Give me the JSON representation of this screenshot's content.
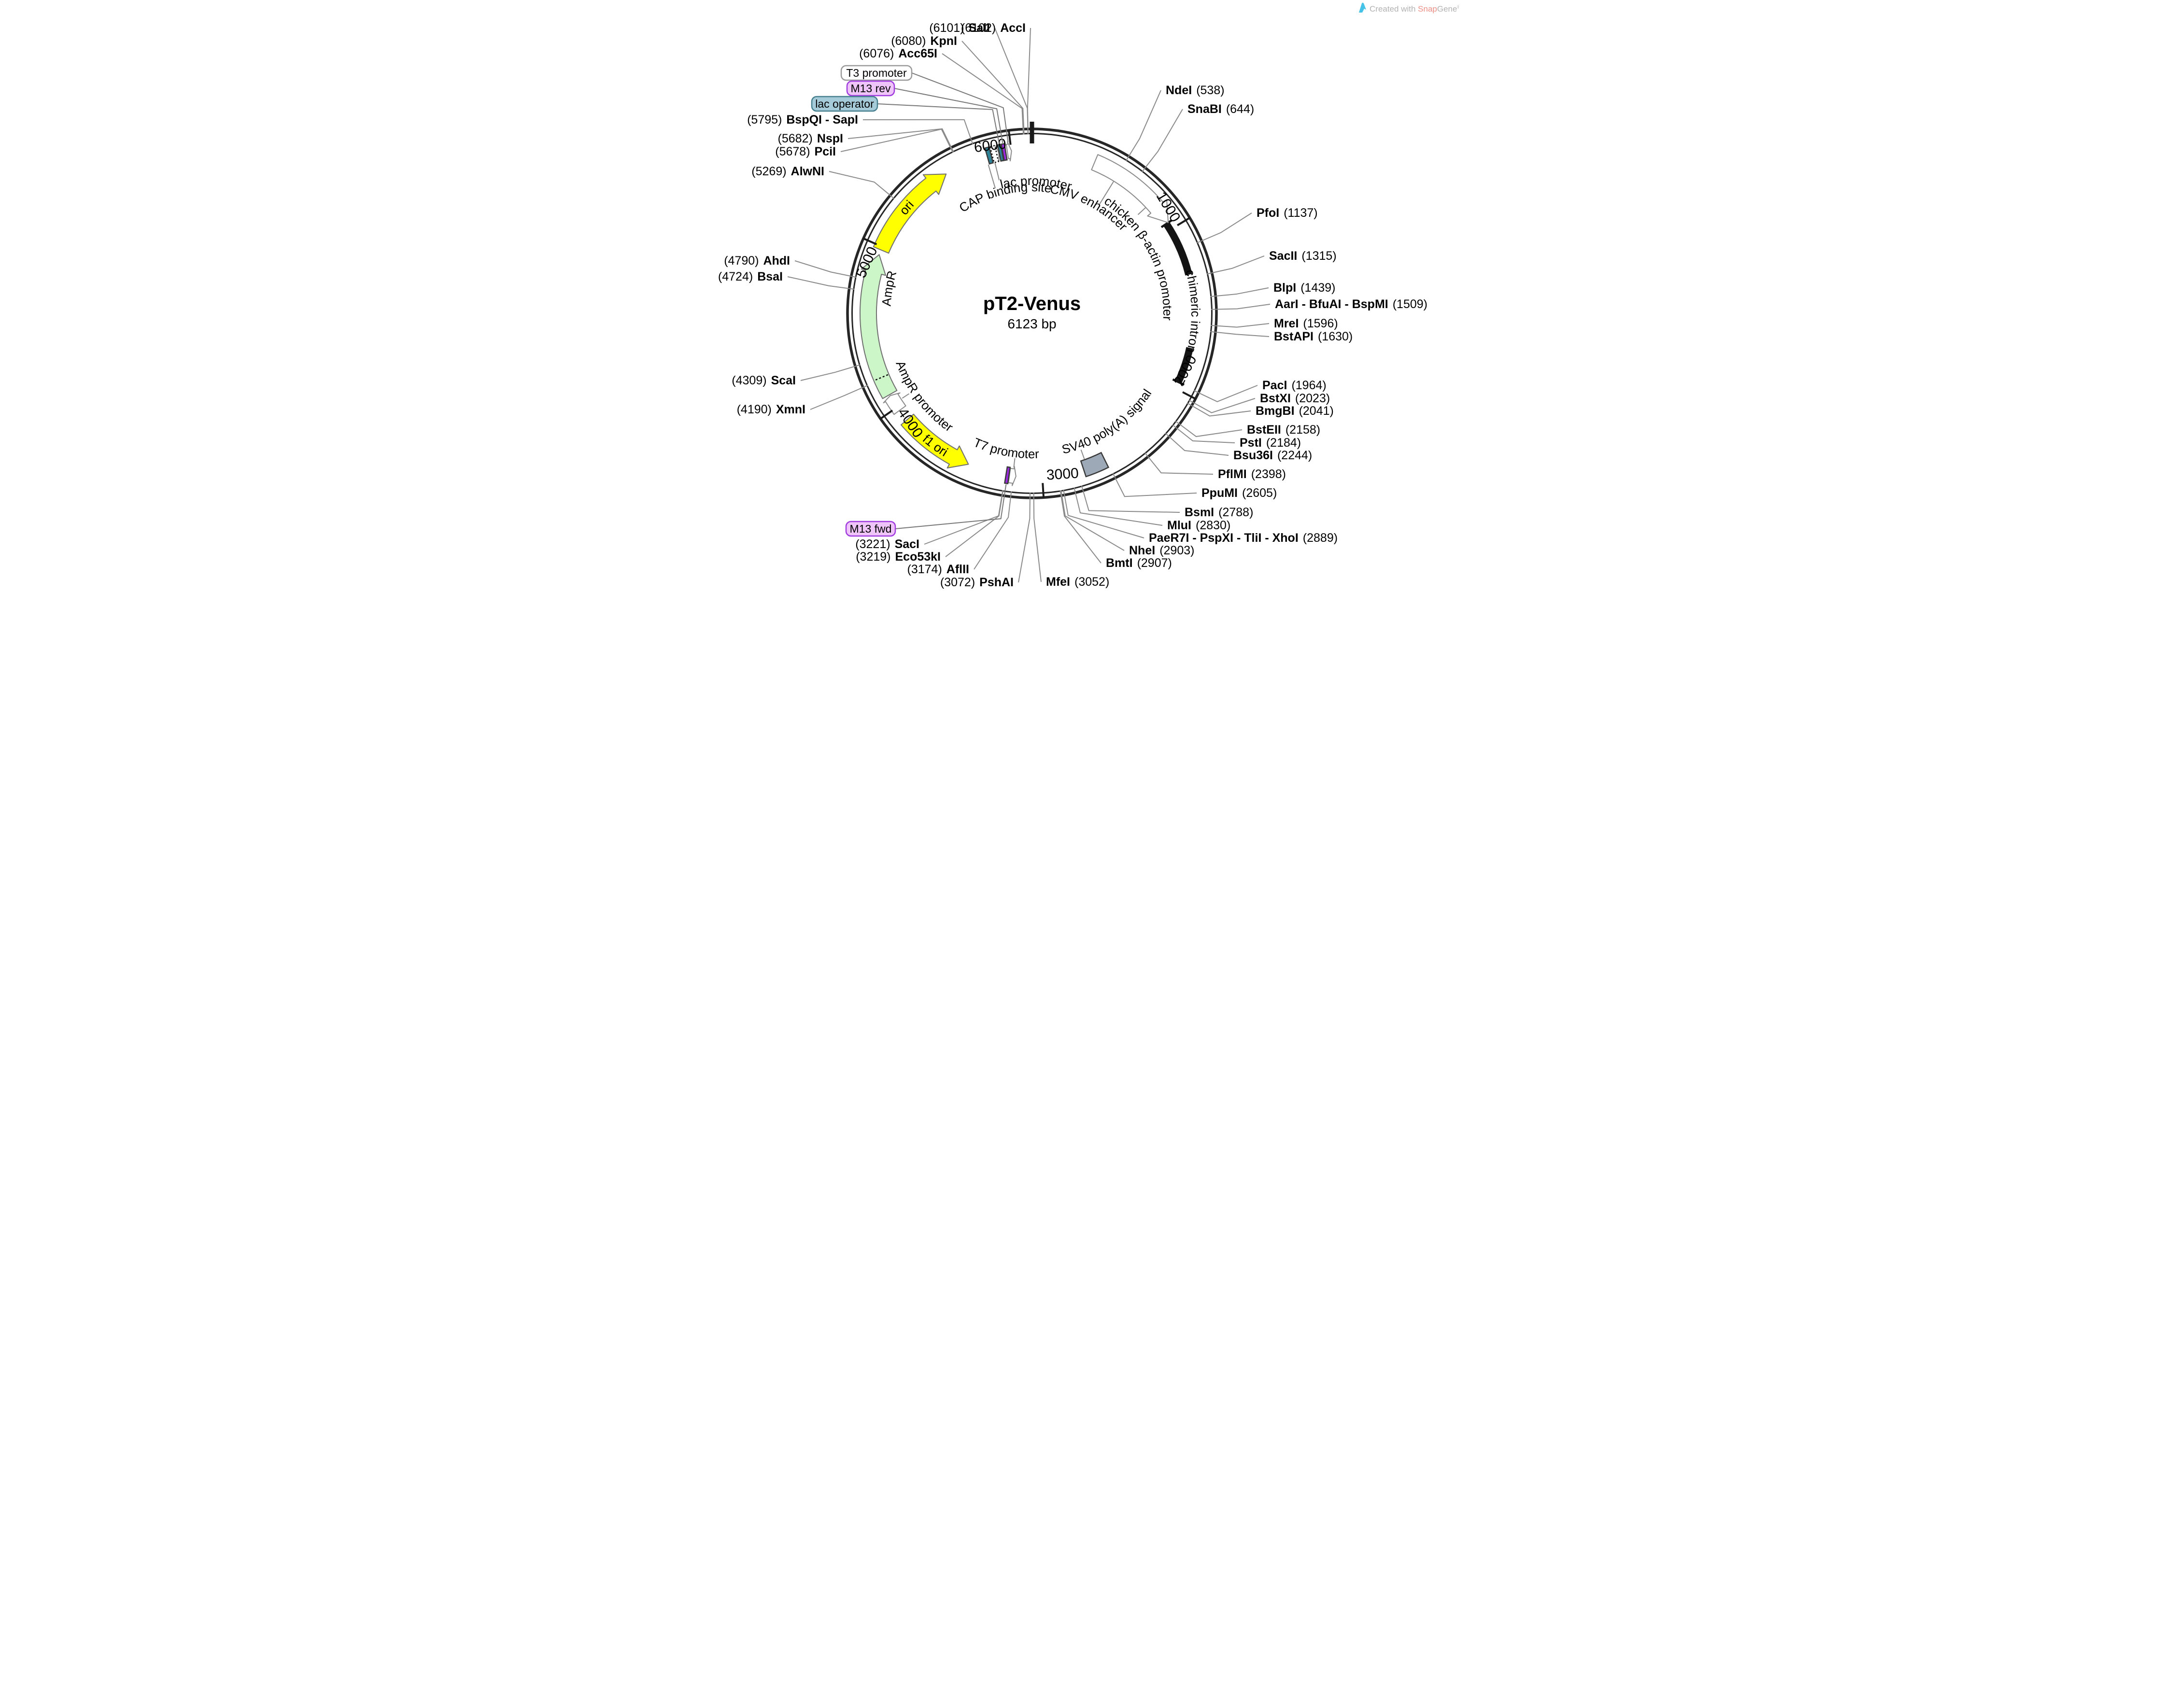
{
  "credit": {
    "prefix": "Created with ",
    "brand_a": "Snap",
    "brand_b": "Gene",
    "reg": "®"
  },
  "plasmid": {
    "name": "pT2-Venus",
    "size_label": "6123 bp",
    "length": 6123
  },
  "ticks": [
    {
      "label": "1000",
      "pos": 1000
    },
    {
      "label": "2000",
      "pos": 2000
    },
    {
      "label": "3000",
      "pos": 3000
    },
    {
      "label": "4000",
      "pos": 4000
    },
    {
      "label": "5000",
      "pos": 5000
    },
    {
      "label": "6000",
      "pos": 6000
    }
  ],
  "origin_pos": 0,
  "restriction_sites": [
    {
      "name": "SalI",
      "site": 6101
    },
    {
      "name": "KpnI",
      "site": 6080
    },
    {
      "name": "Acc65I",
      "site": 6076
    },
    {
      "name": "BspQI - SapI",
      "site": 5795
    },
    {
      "name": "NspI",
      "site": 5682
    },
    {
      "name": "PciI",
      "site": 5678
    },
    {
      "name": "AlwNI",
      "site": 5269
    },
    {
      "name": "AhdI",
      "site": 4790
    },
    {
      "name": "BsaI",
      "site": 4724
    },
    {
      "name": "ScaI",
      "site": 4309
    },
    {
      "name": "XmnI",
      "site": 4190
    },
    {
      "name": "SacI",
      "site": 3221
    },
    {
      "name": "Eco53kI",
      "site": 3219
    },
    {
      "name": "AflII",
      "site": 3174
    },
    {
      "name": "PshAI",
      "site": 3072
    },
    {
      "name": "AccI",
      "site": 6102
    },
    {
      "name": "NdeI",
      "site": 538
    },
    {
      "name": "SnaBI",
      "site": 644
    },
    {
      "name": "PfoI",
      "site": 1137
    },
    {
      "name": "SacII",
      "site": 1315
    },
    {
      "name": "BlpI",
      "site": 1439
    },
    {
      "name": "AarI - BfuAI - BspMI",
      "site": 1509
    },
    {
      "name": "MreI",
      "site": 1596
    },
    {
      "name": "BstAPI",
      "site": 1630
    },
    {
      "name": "PacI",
      "site": 1964
    },
    {
      "name": "BstXI",
      "site": 2023
    },
    {
      "name": "BmgBI",
      "site": 2041
    },
    {
      "name": "BstEII",
      "site": 2158
    },
    {
      "name": "PstI",
      "site": 2184
    },
    {
      "name": "Bsu36I",
      "site": 2244
    },
    {
      "name": "PflMI",
      "site": 2398
    },
    {
      "name": "PpuMI",
      "site": 2605
    },
    {
      "name": "BsmI",
      "site": 2788
    },
    {
      "name": "MluI",
      "site": 2830
    },
    {
      "name": "PaeR7I - PspXI - TliI - XhoI",
      "site": 2889
    },
    {
      "name": "NheI",
      "site": 2903
    },
    {
      "name": "BmtI",
      "site": 2907
    },
    {
      "name": "MfeI",
      "site": 3052
    }
  ],
  "badges": [
    {
      "label": "T3 promoter",
      "style": "plain",
      "target": 5988
    },
    {
      "label": "M13 rev",
      "style": "purple",
      "target": 5957
    },
    {
      "label": "lac operator",
      "style": "teal",
      "target": 5937
    },
    {
      "label": "M13 fwd",
      "style": "purple",
      "target": 3208
    }
  ],
  "features": [
    {
      "label": "ori",
      "type": "arrow",
      "start": 4980,
      "end": 5585,
      "dir": 1,
      "color": "yellow",
      "label_style": "inline"
    },
    {
      "label": "AmpR",
      "type": "arrow",
      "start": 4087,
      "end": 4950,
      "dir": 1,
      "color": "green",
      "label_style": "curved",
      "divider_at": 4200
    },
    {
      "label": "AmpR promoter",
      "type": "arrow",
      "start": 3976,
      "end": 4080,
      "dir": 1,
      "color": "white",
      "label_style": "curved",
      "connector": 4028
    },
    {
      "label": "f1 ori",
      "type": "arrow",
      "start": 3450,
      "end": 3905,
      "dir": -1,
      "color": "yellow",
      "label_style": "inline"
    },
    {
      "label": "T7 promoter",
      "type": "arrow",
      "start": 3157,
      "end": 3196,
      "dir": -1,
      "color": "white",
      "label_style": "curved",
      "connector": 3176
    },
    {
      "label": "M13 fwd",
      "type": "box",
      "start": 3199,
      "end": 3217,
      "color": "purple"
    },
    {
      "label": "SV40 poly(A) signal",
      "type": "box",
      "start": 2612,
      "end": 2750,
      "color": "gray",
      "label_style": "curved",
      "connector": 2725
    },
    {
      "label": "chimeric intron",
      "type": "bar",
      "segments": [
        [
          958,
          1295
        ],
        [
          1740,
          1958
        ]
      ],
      "end_bars": [
        958,
        1958
      ],
      "label_style": "inline",
      "label_center": 1517
    },
    {
      "label": "CMV enhancer",
      "type": "arrow",
      "start": 383,
      "end": 958,
      "dir": 1,
      "color": "white",
      "label_style": "curved",
      "connector": 540
    },
    {
      "label": "chicken β-actin promoter",
      "type": "label-only",
      "label_style": "curved",
      "connector": 800
    },
    {
      "label": "CAP binding site",
      "type": "box",
      "start": 5853,
      "end": 5877,
      "color": "teal",
      "label_style": "curved",
      "connector": 5845
    },
    {
      "label": "lac promoter",
      "type": "box-dashed",
      "start": 5883,
      "end": 5911,
      "color": "white",
      "label_style": "curved",
      "connector": 5888
    },
    {
      "label": "lac operator",
      "type": "box",
      "start": 5927,
      "end": 5945,
      "color": "teal"
    },
    {
      "label": "M13 rev",
      "type": "box",
      "start": 5948,
      "end": 5966,
      "color": "purple"
    },
    {
      "label": "T3 promoter",
      "type": "arrow",
      "start": 5976,
      "end": 6001,
      "dir": 1,
      "color": "white"
    }
  ],
  "colors": {
    "backbone": "#262626",
    "connector": "#8a8a8a",
    "yellow": "#ffff00",
    "green": "#ccf6c8",
    "teal": "#2f8398",
    "purple": "#9b27de",
    "gray": "#9da9b7",
    "white": "#ffffff",
    "bar": "#141414",
    "badge_purple_fill": "#efc4f9",
    "badge_purple_border": "#a03be0",
    "badge_teal_fill": "#a5cbd9",
    "badge_teal_border": "#47808f",
    "badge_plain_border": "#9a9a9a",
    "logo_blue": "#45c2e8"
  }
}
